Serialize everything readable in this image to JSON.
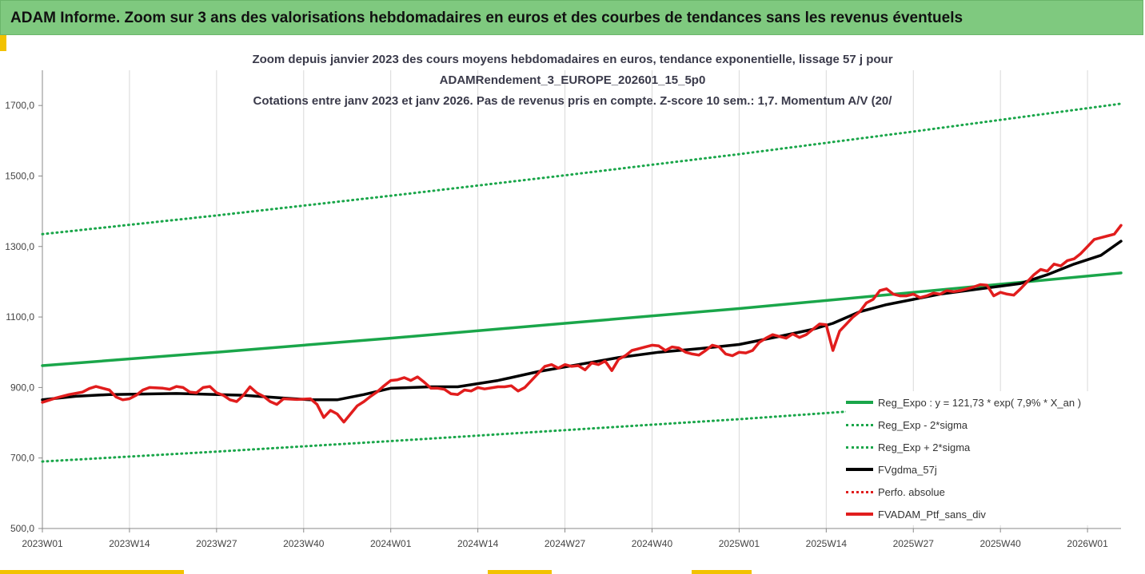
{
  "header": {
    "title": "ADAM Informe. Zoom sur 3 ans des valorisations hebdomadaires en euros et des courbes de tendances sans les revenus éventuels"
  },
  "chart_data": {
    "type": "line",
    "title_lines": [
      "Zoom depuis janvier 2023 des cours moyens hebdomadaires  en euros, tendance exponentielle, lissage 57 j pour",
      "ADAMRendement_3_EUROPE_202601_15_5p0",
      "Cotations entre janv 2023 et janv 2026. Pas de revenus pris en compte. Z-score 10 sem.: 1,7. Momentum A/V (20/"
    ],
    "xlabel": "",
    "ylabel": "",
    "ylim": [
      500,
      1800
    ],
    "y_ticks": [
      500,
      700,
      900,
      1100,
      1300,
      1500,
      1700
    ],
    "y_tick_labels": [
      "500,0",
      "700,0",
      "900,0",
      "1100,0",
      "1300,0",
      "1500,0",
      "1700,0"
    ],
    "x_ticks": [
      0,
      13,
      26,
      39,
      52,
      65,
      78,
      91,
      104,
      117,
      130,
      143,
      156
    ],
    "x_tick_labels": [
      "2023W01",
      "2023W14",
      "2023W27",
      "2023W40",
      "2024W01",
      "2024W14",
      "2024W27",
      "2024W40",
      "2025W01",
      "2025W14",
      "2025W27",
      "2025W40",
      "2026W01"
    ],
    "x_range": [
      0,
      161
    ],
    "grid": "vertical",
    "legend_position": "bottom-right",
    "series": [
      {
        "name": "Reg_Expo : y = 121,73 * exp( 7,9% * X_an )",
        "style": "solid",
        "color": "#1aa64a",
        "points": [
          [
            0,
            962
          ],
          [
            26,
            1000
          ],
          [
            52,
            1040
          ],
          [
            78,
            1082
          ],
          [
            104,
            1124
          ],
          [
            130,
            1170
          ],
          [
            161,
            1225
          ]
        ]
      },
      {
        "name": "Reg_Exp - 2*sigma",
        "style": "dotted",
        "color": "#1aa64a",
        "points": [
          [
            0,
            690
          ],
          [
            26,
            718
          ],
          [
            52,
            748
          ],
          [
            78,
            779
          ],
          [
            104,
            810
          ],
          [
            130,
            845
          ],
          [
            156,
            880
          ]
        ]
      },
      {
        "name": "Reg_Exp + 2*sigma",
        "style": "dotted",
        "color": "#1aa64a",
        "points": [
          [
            0,
            1335
          ],
          [
            26,
            1388
          ],
          [
            52,
            1444
          ],
          [
            78,
            1502
          ],
          [
            104,
            1562
          ],
          [
            130,
            1626
          ],
          [
            161,
            1705
          ]
        ]
      },
      {
        "name": "FVgdma_57j",
        "style": "solid",
        "color": "#000000",
        "points": [
          [
            0,
            865
          ],
          [
            5,
            875
          ],
          [
            10,
            880
          ],
          [
            20,
            883
          ],
          [
            30,
            878
          ],
          [
            36,
            870
          ],
          [
            40,
            865
          ],
          [
            44,
            865
          ],
          [
            48,
            880
          ],
          [
            52,
            898
          ],
          [
            58,
            902
          ],
          [
            62,
            902
          ],
          [
            68,
            920
          ],
          [
            74,
            945
          ],
          [
            80,
            965
          ],
          [
            86,
            985
          ],
          [
            92,
            1000
          ],
          [
            98,
            1010
          ],
          [
            104,
            1022
          ],
          [
            110,
            1045
          ],
          [
            115,
            1065
          ],
          [
            118,
            1082
          ],
          [
            122,
            1115
          ],
          [
            126,
            1135
          ],
          [
            130,
            1150
          ],
          [
            134,
            1165
          ],
          [
            140,
            1180
          ],
          [
            146,
            1195
          ],
          [
            150,
            1220
          ],
          [
            154,
            1250
          ],
          [
            158,
            1275
          ],
          [
            161,
            1315
          ]
        ]
      },
      {
        "name": "Perfo. absolue",
        "style": "dotted",
        "color": "#e11d1d",
        "points": []
      },
      {
        "name": "FVADAM_Ptf_sans_div",
        "style": "solid",
        "color": "#e11d1d",
        "points": [
          [
            0,
            858
          ],
          [
            2,
            870
          ],
          [
            4,
            880
          ],
          [
            6,
            887
          ],
          [
            7,
            897
          ],
          [
            8,
            903
          ],
          [
            9,
            898
          ],
          [
            10,
            893
          ],
          [
            11,
            873
          ],
          [
            12,
            865
          ],
          [
            13,
            868
          ],
          [
            14,
            878
          ],
          [
            15,
            893
          ],
          [
            16,
            900
          ],
          [
            18,
            898
          ],
          [
            19,
            895
          ],
          [
            20,
            903
          ],
          [
            21,
            900
          ],
          [
            22,
            887
          ],
          [
            23,
            885
          ],
          [
            24,
            900
          ],
          [
            25,
            903
          ],
          [
            26,
            885
          ],
          [
            27,
            878
          ],
          [
            28,
            865
          ],
          [
            29,
            860
          ],
          [
            30,
            878
          ],
          [
            31,
            902
          ],
          [
            32,
            885
          ],
          [
            33,
            875
          ],
          [
            34,
            860
          ],
          [
            35,
            852
          ],
          [
            36,
            868
          ],
          [
            38,
            866
          ],
          [
            40,
            868
          ],
          [
            41,
            852
          ],
          [
            42,
            815
          ],
          [
            43,
            835
          ],
          [
            44,
            825
          ],
          [
            45,
            802
          ],
          [
            46,
            825
          ],
          [
            47,
            848
          ],
          [
            48,
            860
          ],
          [
            49,
            875
          ],
          [
            50,
            888
          ],
          [
            51,
            905
          ],
          [
            52,
            920
          ],
          [
            53,
            922
          ],
          [
            54,
            928
          ],
          [
            55,
            920
          ],
          [
            56,
            930
          ],
          [
            57,
            915
          ],
          [
            58,
            898
          ],
          [
            59,
            898
          ],
          [
            60,
            895
          ],
          [
            61,
            882
          ],
          [
            62,
            880
          ],
          [
            63,
            893
          ],
          [
            64,
            890
          ],
          [
            65,
            900
          ],
          [
            66,
            896
          ],
          [
            68,
            902
          ],
          [
            69,
            902
          ],
          [
            70,
            905
          ],
          [
            71,
            890
          ],
          [
            72,
            900
          ],
          [
            73,
            920
          ],
          [
            74,
            940
          ],
          [
            75,
            960
          ],
          [
            76,
            965
          ],
          [
            77,
            955
          ],
          [
            78,
            965
          ],
          [
            79,
            960
          ],
          [
            80,
            962
          ],
          [
            81,
            950
          ],
          [
            82,
            970
          ],
          [
            83,
            965
          ],
          [
            84,
            975
          ],
          [
            85,
            948
          ],
          [
            86,
            980
          ],
          [
            87,
            990
          ],
          [
            88,
            1005
          ],
          [
            89,
            1010
          ],
          [
            90,
            1015
          ],
          [
            91,
            1020
          ],
          [
            92,
            1018
          ],
          [
            93,
            1005
          ],
          [
            94,
            1015
          ],
          [
            95,
            1012
          ],
          [
            96,
            1000
          ],
          [
            97,
            995
          ],
          [
            98,
            992
          ],
          [
            99,
            1005
          ],
          [
            100,
            1020
          ],
          [
            101,
            1015
          ],
          [
            102,
            995
          ],
          [
            103,
            990
          ],
          [
            104,
            1000
          ],
          [
            105,
            998
          ],
          [
            106,
            1005
          ],
          [
            107,
            1028
          ],
          [
            108,
            1040
          ],
          [
            109,
            1050
          ],
          [
            110,
            1045
          ],
          [
            111,
            1040
          ],
          [
            112,
            1052
          ],
          [
            113,
            1042
          ],
          [
            114,
            1050
          ],
          [
            115,
            1065
          ],
          [
            116,
            1080
          ],
          [
            117,
            1078
          ],
          [
            118,
            1005
          ],
          [
            119,
            1060
          ],
          [
            120,
            1080
          ],
          [
            121,
            1100
          ],
          [
            122,
            1115
          ],
          [
            123,
            1140
          ],
          [
            124,
            1150
          ],
          [
            125,
            1175
          ],
          [
            126,
            1180
          ],
          [
            127,
            1165
          ],
          [
            128,
            1160
          ],
          [
            129,
            1160
          ],
          [
            130,
            1165
          ],
          [
            131,
            1155
          ],
          [
            132,
            1160
          ],
          [
            133,
            1168
          ],
          [
            134,
            1165
          ],
          [
            135,
            1175
          ],
          [
            136,
            1172
          ],
          [
            137,
            1175
          ],
          [
            138,
            1180
          ],
          [
            139,
            1185
          ],
          [
            140,
            1192
          ],
          [
            141,
            1190
          ],
          [
            142,
            1160
          ],
          [
            143,
            1170
          ],
          [
            144,
            1165
          ],
          [
            145,
            1162
          ],
          [
            146,
            1180
          ],
          [
            147,
            1200
          ],
          [
            148,
            1220
          ],
          [
            149,
            1235
          ],
          [
            150,
            1230
          ],
          [
            151,
            1250
          ],
          [
            152,
            1245
          ],
          [
            153,
            1260
          ],
          [
            154,
            1265
          ],
          [
            155,
            1280
          ],
          [
            156,
            1300
          ],
          [
            157,
            1320
          ],
          [
            158,
            1325
          ],
          [
            159,
            1330
          ],
          [
            160,
            1335
          ],
          [
            161,
            1360
          ]
        ]
      }
    ]
  },
  "colors": {
    "header_bg": "#7fc97f",
    "accent_yellow": "#f2c200",
    "trend_green": "#1aa64a",
    "portfolio_red": "#e11d1d",
    "moving_average_black": "#000000"
  }
}
